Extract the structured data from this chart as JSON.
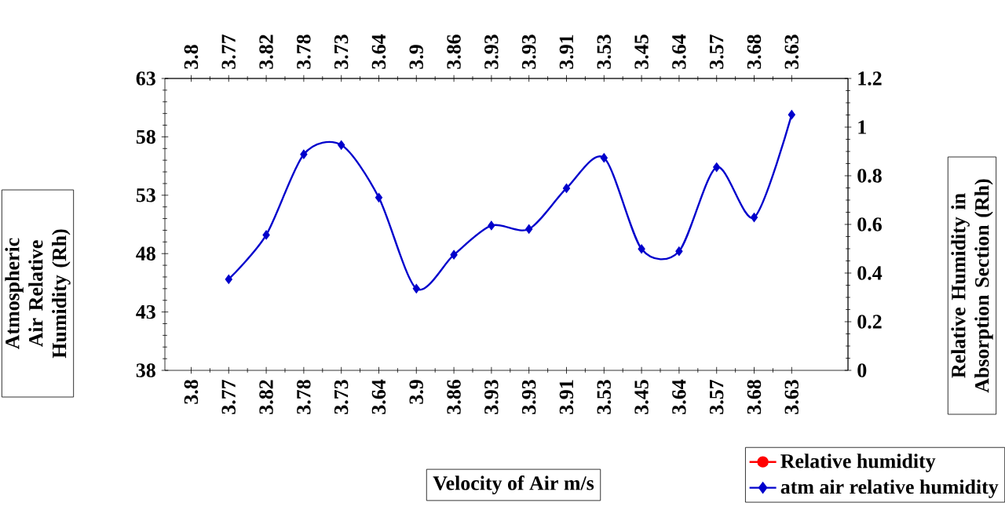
{
  "chart_data": {
    "type": "line",
    "xlabel": "Velocity of Air m/s",
    "ylabel": "Atmospheric Air Relative Humidity (Rh)",
    "y2label": "Relative Humidity in Absorption Section (Rh)",
    "categories": [
      "3.8",
      "3.77",
      "3.82",
      "3.78",
      "3.73",
      "3.64",
      "3.9",
      "3.86",
      "3.93",
      "3.93",
      "3.91",
      "3.53",
      "3.45",
      "3.64",
      "3.57",
      "3.68",
      "3.63"
    ],
    "series": [
      {
        "name": "Relative humidity",
        "color": "#ff0000",
        "marker": "circle",
        "values": [
          null,
          null,
          null,
          null,
          null,
          null,
          null,
          null,
          null,
          null,
          null,
          null,
          null,
          null,
          null,
          null,
          null
        ]
      },
      {
        "name": "atm air relative humidity",
        "color": "#0000cc",
        "marker": "diamond",
        "values": [
          null,
          45.8,
          49.6,
          56.5,
          57.3,
          52.8,
          45.0,
          47.9,
          50.4,
          50.1,
          53.6,
          56.2,
          48.4,
          48.2,
          55.4,
          51.1,
          59.9
        ]
      }
    ],
    "ylim": [
      38,
      63
    ],
    "yticks": [
      38,
      43,
      48,
      53,
      58,
      63
    ],
    "y2lim": [
      0,
      1.2
    ],
    "y2ticks": [
      0,
      0.2,
      0.4,
      0.6,
      0.8,
      1,
      1.2
    ],
    "legend": "bottom right",
    "grid": false
  }
}
